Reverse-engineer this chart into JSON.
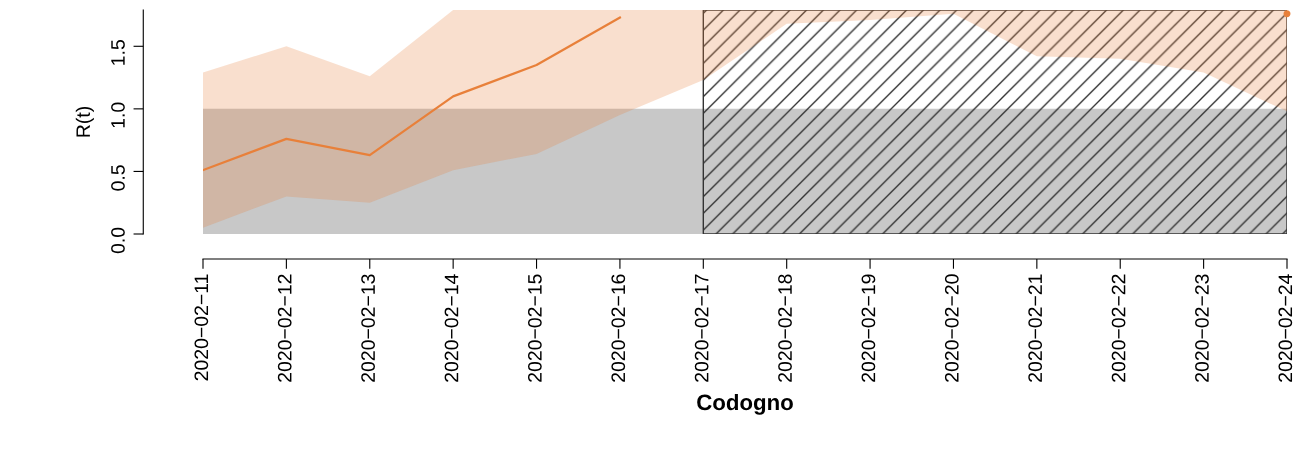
{
  "chart_data": {
    "type": "line",
    "xlabel": "Codogno",
    "ylabel": "R(t)",
    "x": [
      "2020-02-11",
      "2020-02-12",
      "2020-02-13",
      "2020-02-14",
      "2020-02-15",
      "2020-02-16",
      "2020-02-17",
      "2020-02-18",
      "2020-02-19",
      "2020-02-20",
      "2020-02-21",
      "2020-02-22",
      "2020-02-23",
      "2020-02-24"
    ],
    "series": [
      {
        "color": "#e8803a",
        "values": [
          0.51,
          0.76,
          0.63,
          1.1,
          1.35,
          1.73,
          null,
          null,
          null,
          null,
          null,
          null,
          null,
          1.76
        ],
        "lower": [
          0.05,
          0.3,
          0.25,
          0.51,
          0.64,
          0.95,
          1.23,
          1.68,
          1.71,
          1.76,
          1.42,
          1.4,
          1.29,
          0.98
        ],
        "upper": [
          1.29,
          1.5,
          1.26,
          1.79,
          1.79,
          1.79,
          1.79,
          1.79,
          1.79,
          1.79,
          1.79,
          1.79,
          1.79,
          1.79
        ]
      }
    ],
    "xlim": [
      "2020-02-11",
      "2020-02-24"
    ],
    "xticks": [
      {
        "value": "2020-02-11",
        "label": "2020−02−11"
      },
      {
        "value": "2020-02-12",
        "label": "2020−02−12"
      },
      {
        "value": "2020-02-13",
        "label": "2020−02−13"
      },
      {
        "value": "2020-02-14",
        "label": "2020−02−14"
      },
      {
        "value": "2020-02-15",
        "label": "2020−02−15"
      },
      {
        "value": "2020-02-16",
        "label": "2020−02−16"
      },
      {
        "value": "2020-02-17",
        "label": "2020−02−17"
      },
      {
        "value": "2020-02-18",
        "label": "2020−02−18"
      },
      {
        "value": "2020-02-19",
        "label": "2020−02−19"
      },
      {
        "value": "2020-02-20",
        "label": "2020−02−20"
      },
      {
        "value": "2020-02-21",
        "label": "2020−02−21"
      },
      {
        "value": "2020-02-22",
        "label": "2020−02−22"
      },
      {
        "value": "2020-02-23",
        "label": "2020−02−23"
      },
      {
        "value": "2020-02-24",
        "label": "2020−02−24"
      }
    ],
    "ylim": [
      0,
      1.79
    ],
    "yticks": [
      {
        "value": 0,
        "label": "0.0"
      },
      {
        "value": 0.5,
        "label": "0.5"
      },
      {
        "value": 1.0,
        "label": "1.0"
      },
      {
        "value": 1.5,
        "label": "1.5"
      }
    ],
    "bands": [
      {
        "axis": "y",
        "from": 0,
        "to": 1,
        "color": "#c8c8c8"
      },
      {
        "axis": "x",
        "from": "2020-02-17",
        "to": "2020-02-24",
        "color": "#333333"
      }
    ],
    "grid": false,
    "legend": false,
    "line_style": "solid",
    "marker": "none"
  }
}
